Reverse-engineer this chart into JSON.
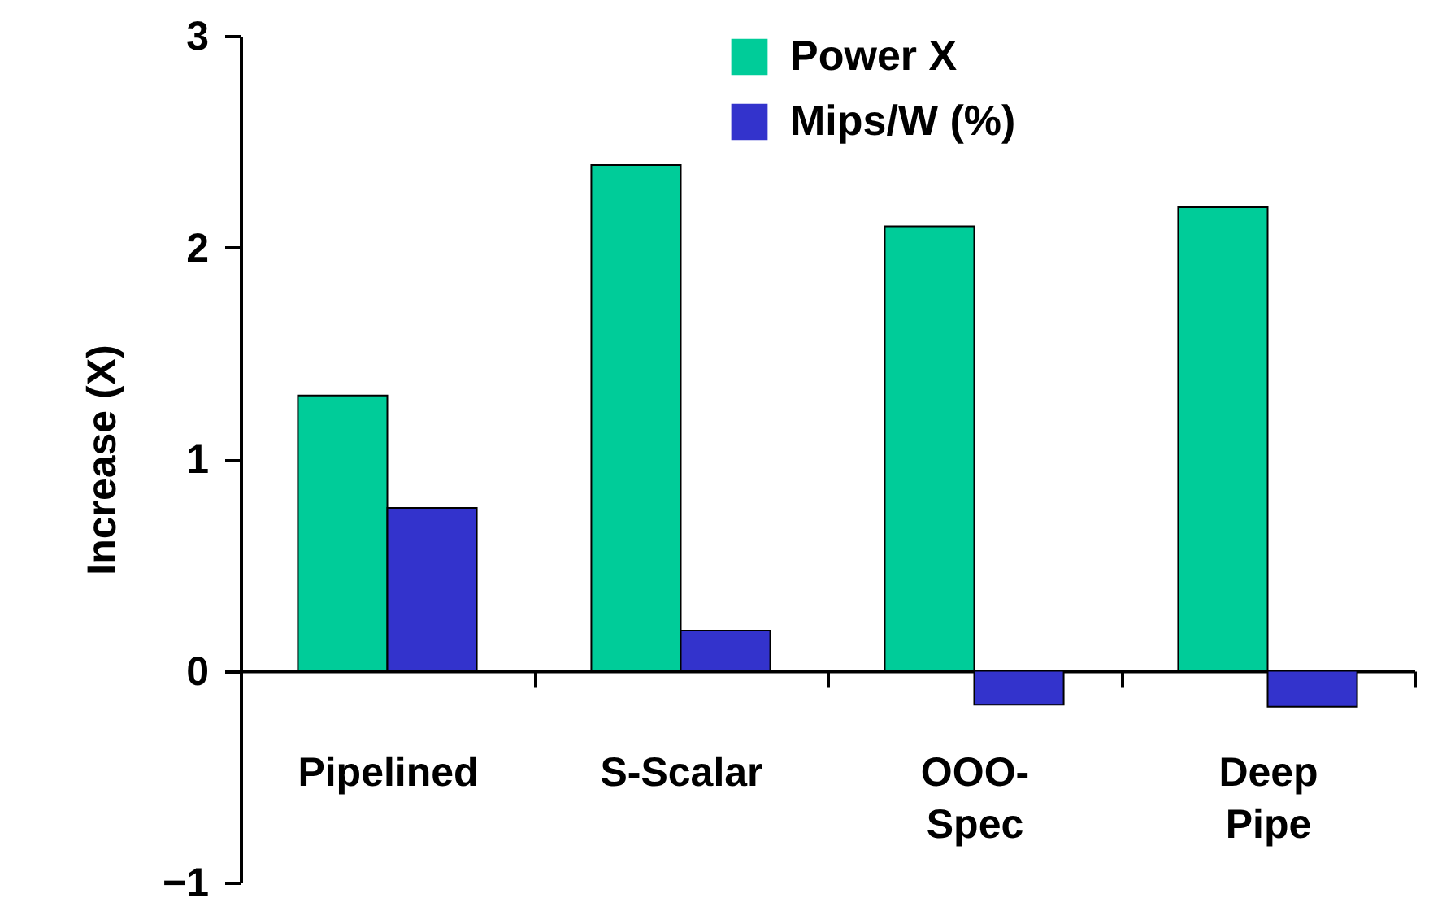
{
  "chart_data": {
    "type": "bar",
    "ylabel": "Increase (X)",
    "categories": [
      "Pipelined",
      "S-Scalar",
      "OOO-Spec",
      "Deep Pipe"
    ],
    "series": [
      {
        "name": "Power X",
        "color": "#00cc99",
        "values": [
          1.3,
          2.39,
          2.1,
          2.19
        ]
      },
      {
        "name": "Mips/W (%)",
        "color": "#3333cc",
        "values": [
          0.77,
          0.19,
          -0.16,
          -0.17
        ]
      }
    ],
    "ylim": [
      -1,
      3
    ],
    "yticks": [
      -1,
      0,
      1,
      2,
      3
    ],
    "legend": "top right"
  }
}
